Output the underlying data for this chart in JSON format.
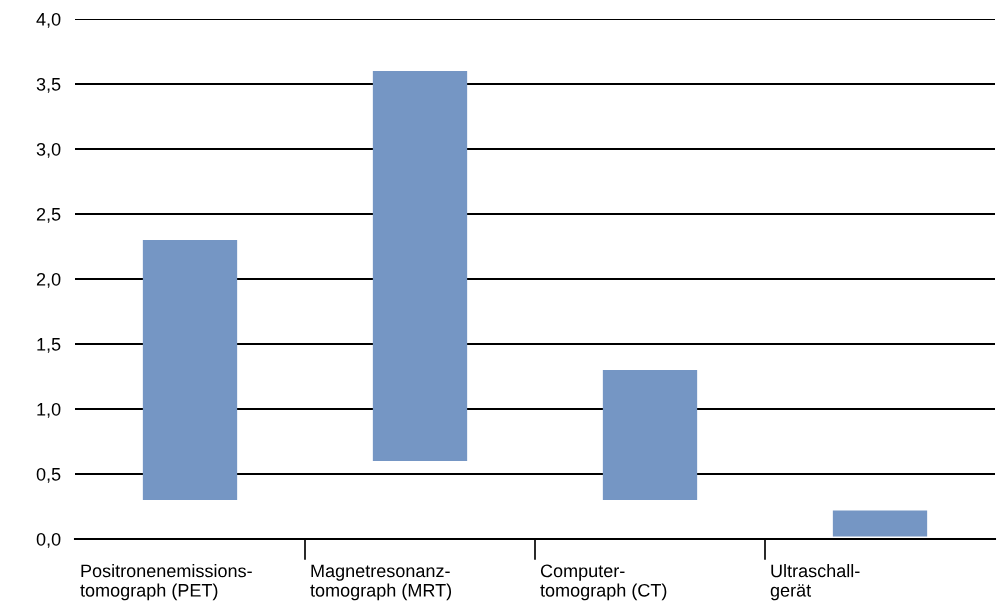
{
  "chart_data": {
    "type": "bar",
    "categories": [
      "Positronenemissions-\ntomograph (PET)",
      "Magnetresonanz-\ntomograph (MRT)",
      "Computer-\ntomograph (CT)",
      "Ultraschall-\ngerät"
    ],
    "base": [
      0.3,
      0.6,
      0.3,
      0.02
    ],
    "values": [
      2.0,
      3.0,
      1.0,
      0.2
    ],
    "color": "#7596c4",
    "ylim": [
      0,
      4
    ],
    "yticks": [
      {
        "value": 0,
        "label": "0,0"
      },
      {
        "value": 0.5,
        "label": "0,5"
      },
      {
        "value": 1,
        "label": "1,0"
      },
      {
        "value": 1.5,
        "label": "1,5"
      },
      {
        "value": 2,
        "label": "2,0"
      },
      {
        "value": 2.5,
        "label": "2,5"
      },
      {
        "value": 3,
        "label": "3,0"
      },
      {
        "value": 3.5,
        "label": "3,5"
      },
      {
        "value": 4,
        "label": "4,0"
      }
    ],
    "grid": "y"
  }
}
